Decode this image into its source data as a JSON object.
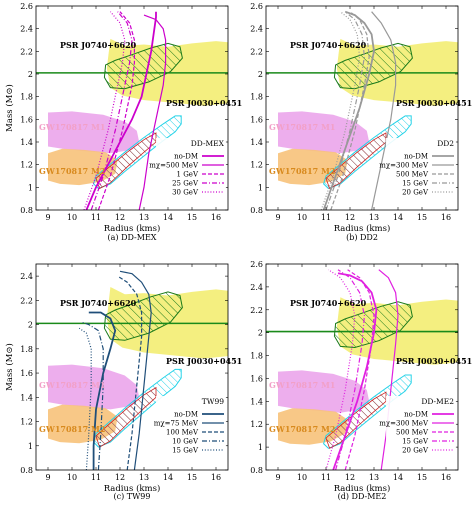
{
  "chart_data": [
    {
      "type": "line",
      "caption": "(a) DD-MEX",
      "xlabel": "Radius (kms)",
      "ylabel": "Mass (M⊙)",
      "xlim": [
        8.5,
        16.5
      ],
      "ylim": [
        0.8,
        2.6
      ],
      "xticks": [
        9,
        10,
        11,
        12,
        13,
        14,
        15,
        16
      ],
      "yticks": [
        0.8,
        1,
        1.2,
        1.4,
        1.6,
        1.8,
        2,
        2.2,
        2.4,
        2.6
      ],
      "legend_title": "DD-MEX",
      "legend_position": "lower-right",
      "annotations": [
        "PSR J0740+6620",
        "PSR J0030+0451",
        "GW170817 M1",
        "GW170817 M2"
      ],
      "color": "#cc00cc",
      "series": [
        {
          "name": "no-DM",
          "dash": "solid",
          "x": [
            10.6,
            11.0,
            11.5,
            12.0,
            12.5,
            12.9,
            13.1,
            13.3,
            13.4,
            13.5,
            13.5
          ],
          "y": [
            0.8,
            1.0,
            1.2,
            1.4,
            1.6,
            1.8,
            2.0,
            2.2,
            2.35,
            2.5,
            2.55
          ]
        },
        {
          "name": "mχ=500 MeV",
          "dash": "solid",
          "x": [
            12.8,
            13.0,
            13.2,
            13.5,
            13.8,
            13.9,
            13.9,
            13.8,
            13.5,
            13.0
          ],
          "y": [
            0.8,
            1.0,
            1.3,
            1.6,
            1.9,
            2.1,
            2.3,
            2.4,
            2.48,
            2.52
          ]
        },
        {
          "name": "1 GeV",
          "dash": "dashed",
          "x": [
            11.1,
            11.6,
            12.1,
            12.5,
            12.6,
            12.6,
            12.4,
            12.0
          ],
          "y": [
            0.8,
            1.1,
            1.5,
            1.9,
            2.1,
            2.3,
            2.45,
            2.55
          ]
        },
        {
          "name": "25 GeV",
          "dash": "dashdot",
          "x": [
            10.8,
            11.3,
            11.8,
            12.2,
            12.4,
            12.5,
            12.3,
            11.9
          ],
          "y": [
            0.8,
            1.1,
            1.5,
            1.9,
            2.1,
            2.3,
            2.45,
            2.55
          ]
        },
        {
          "name": "30 GeV",
          "dash": "dotted",
          "x": [
            10.5,
            11.0,
            11.5,
            11.9,
            12.1,
            12.2,
            12.0,
            11.6
          ],
          "y": [
            0.8,
            1.1,
            1.5,
            1.9,
            2.1,
            2.3,
            2.45,
            2.55
          ]
        }
      ]
    },
    {
      "type": "line",
      "caption": "(b) DD2",
      "xlabel": "Radius (kms)",
      "ylabel": "",
      "xlim": [
        8.5,
        16.5
      ],
      "ylim": [
        0.8,
        2.6
      ],
      "xticks": [
        9,
        10,
        11,
        12,
        13,
        14,
        15,
        16
      ],
      "yticks": [
        0.8,
        1,
        1.2,
        1.4,
        1.6,
        1.8,
        2,
        2.2,
        2.4,
        2.6
      ],
      "legend_title": "DD2",
      "legend_position": "lower-right",
      "annotations": [
        "PSR J0740+6620",
        "PSR J0030+0451",
        "GW170817 M1",
        "GW170817 M2"
      ],
      "color": "#999999",
      "series": [
        {
          "name": "no-DM",
          "dash": "solid",
          "x": [
            10.9,
            11.4,
            11.9,
            12.4,
            12.8,
            13.0,
            12.9,
            12.6,
            12.2,
            11.8
          ],
          "y": [
            0.8,
            1.1,
            1.4,
            1.7,
            2.0,
            2.2,
            2.35,
            2.45,
            2.52,
            2.55
          ]
        },
        {
          "name": "mχ=300 MeV",
          "dash": "solid",
          "x": [
            12.9,
            13.1,
            13.4,
            13.7,
            13.9,
            13.9,
            13.7,
            13.3,
            12.9
          ],
          "y": [
            0.8,
            1.0,
            1.3,
            1.6,
            1.9,
            2.1,
            2.3,
            2.45,
            2.55
          ]
        },
        {
          "name": "500 MeV",
          "dash": "dashed",
          "x": [
            11.2,
            11.7,
            12.2,
            12.6,
            12.8,
            12.7,
            12.4,
            12.0
          ],
          "y": [
            0.8,
            1.1,
            1.5,
            1.9,
            2.15,
            2.35,
            2.48,
            2.55
          ]
        },
        {
          "name": "15 GeV",
          "dash": "dashdot",
          "x": [
            11.0,
            11.5,
            12.0,
            12.4,
            12.6,
            12.5,
            12.2,
            11.8
          ],
          "y": [
            0.8,
            1.1,
            1.5,
            1.9,
            2.15,
            2.35,
            2.48,
            2.55
          ]
        },
        {
          "name": "20 GeV",
          "dash": "dotted",
          "x": [
            10.8,
            11.3,
            11.8,
            12.2,
            12.4,
            12.3,
            12.0,
            11.6
          ],
          "y": [
            0.8,
            1.1,
            1.5,
            1.9,
            2.15,
            2.35,
            2.48,
            2.55
          ]
        }
      ]
    },
    {
      "type": "line",
      "caption": "(c) TW99",
      "xlabel": "Radius (kms)",
      "ylabel": "Mass (M⊙)",
      "xlim": [
        8.5,
        16.5
      ],
      "ylim": [
        0.8,
        2.5
      ],
      "xticks": [
        9,
        10,
        11,
        12,
        13,
        14,
        15,
        16
      ],
      "yticks": [
        0.8,
        1,
        1.2,
        1.4,
        1.6,
        1.8,
        2,
        2.2,
        2.4
      ],
      "legend_title": "TW99",
      "legend_position": "lower-right",
      "annotations": [
        "PSR J0740+6620",
        "PSR J0030+0451",
        "GW170817 M1",
        "GW170817 M2"
      ],
      "color": "#1f4e79",
      "series": [
        {
          "name": "no-DM",
          "dash": "solid",
          "x": [
            10.9,
            10.9,
            11.0,
            11.3,
            11.6,
            11.8,
            11.6,
            11.2,
            10.7
          ],
          "y": [
            0.8,
            1.0,
            1.3,
            1.6,
            1.8,
            1.95,
            2.05,
            2.1,
            2.1
          ]
        },
        {
          "name": "mχ=75 MeV",
          "dash": "solid",
          "x": [
            12.6,
            12.8,
            13.0,
            13.2,
            13.3,
            13.2,
            12.9,
            12.5,
            12.0
          ],
          "y": [
            0.8,
            1.1,
            1.5,
            1.9,
            2.1,
            2.25,
            2.35,
            2.42,
            2.44
          ]
        },
        {
          "name": "100 MeV",
          "dash": "dashed",
          "x": [
            12.3,
            12.5,
            12.7,
            12.9,
            12.9,
            12.7,
            12.3,
            11.9
          ],
          "y": [
            0.8,
            1.1,
            1.5,
            1.9,
            2.1,
            2.25,
            2.35,
            2.4
          ]
        },
        {
          "name": "10 GeV",
          "dash": "dashdot",
          "x": [
            11.1,
            11.2,
            11.3,
            11.3,
            11.1,
            10.7,
            10.4
          ],
          "y": [
            0.8,
            1.1,
            1.5,
            1.8,
            1.95,
            2.0,
            2.02
          ]
        },
        {
          "name": "15 GeV",
          "dash": "dotted",
          "x": [
            10.6,
            10.7,
            10.8,
            10.8,
            10.6,
            10.3
          ],
          "y": [
            0.8,
            1.1,
            1.5,
            1.8,
            1.93,
            1.97
          ]
        }
      ]
    },
    {
      "type": "line",
      "caption": "(d) DD-ME2",
      "xlabel": "Radius (kms)",
      "ylabel": "",
      "xlim": [
        8.5,
        16.5
      ],
      "ylim": [
        0.8,
        2.6
      ],
      "xticks": [
        9,
        10,
        11,
        12,
        13,
        14,
        15,
        16
      ],
      "yticks": [
        0.8,
        1,
        1.2,
        1.4,
        1.6,
        1.8,
        2,
        2.2,
        2.4,
        2.6
      ],
      "legend_title": "DD-ME2",
      "legend_position": "lower-right",
      "annotations": [
        "PSR J0740+6620",
        "PSR J0030+0451",
        "GW170817 M1",
        "GW170817 M2"
      ],
      "color": "#e020e0",
      "series": [
        {
          "name": "no-DM",
          "dash": "solid",
          "x": [
            11.3,
            11.8,
            12.3,
            12.7,
            13.0,
            13.1,
            12.9,
            12.5,
            12.0,
            11.5
          ],
          "y": [
            0.8,
            1.1,
            1.4,
            1.7,
            2.0,
            2.2,
            2.35,
            2.45,
            2.5,
            2.52
          ]
        },
        {
          "name": "mχ=300 MeV",
          "dash": "solid",
          "x": [
            13.3,
            13.5,
            13.7,
            13.9,
            14.0,
            13.9,
            13.6,
            13.2
          ],
          "y": [
            0.8,
            1.1,
            1.5,
            1.9,
            2.15,
            2.35,
            2.48,
            2.55
          ]
        },
        {
          "name": "500 MeV",
          "dash": "dashed",
          "x": [
            11.8,
            12.2,
            12.6,
            12.9,
            13.0,
            12.8,
            12.4,
            11.9
          ],
          "y": [
            0.8,
            1.1,
            1.5,
            1.9,
            2.15,
            2.35,
            2.48,
            2.55
          ]
        },
        {
          "name": "15 GeV",
          "dash": "dashdot",
          "x": [
            11.4,
            11.8,
            12.2,
            12.5,
            12.6,
            12.4,
            12.0,
            11.5
          ],
          "y": [
            0.8,
            1.1,
            1.5,
            1.9,
            2.15,
            2.35,
            2.48,
            2.55
          ]
        },
        {
          "name": "20 GeV",
          "dash": "dotted",
          "x": [
            11.0,
            11.4,
            11.8,
            12.1,
            12.2,
            12.0,
            11.6,
            11.1
          ],
          "y": [
            0.8,
            1.1,
            1.5,
            1.9,
            2.15,
            2.35,
            2.48,
            2.55
          ]
        }
      ]
    }
  ],
  "constraints": {
    "psr_line_mass": 2.01,
    "psr_band_color": "#f2ec6a",
    "psr_line_color": "#1a8a1a",
    "gw_m1_color": "#eaa0ea",
    "gw_m2_color": "#f7c27a",
    "nicer_color": "#27d3e8",
    "nicer_hatch_color": "#cc2222"
  }
}
